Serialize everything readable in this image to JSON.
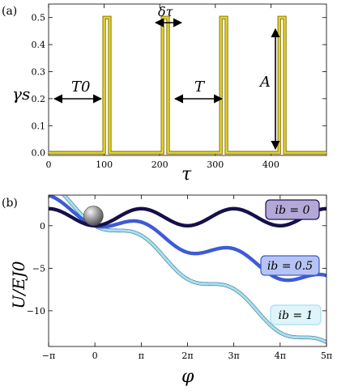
{
  "chart_data": [
    {
      "type": "line",
      "panel_label": "(a)",
      "xlabel": "τ",
      "ylabel": "γs",
      "xlim": [
        0,
        500
      ],
      "ylim": [
        -0.01,
        0.55
      ],
      "x_ticks": [
        0,
        100,
        200,
        300,
        400
      ],
      "x_tick_labels": [
        "0",
        "100",
        "200",
        "300",
        "400"
      ],
      "y_ticks": [
        0.0,
        0.1,
        0.2,
        0.3,
        0.4,
        0.5
      ],
      "y_tick_labels": [
        "0.0",
        "0.1",
        "0.2",
        "0.3",
        "0.4",
        "0.5"
      ],
      "grid": false,
      "pulse_start_times": [
        100,
        200,
        300,
        400
      ],
      "pulse_width": 10,
      "pulse_offset_step": 5,
      "pulse_height": 0.5,
      "baseline": 0.0,
      "line_color": "#e8d52a",
      "annotations": {
        "T0": "T0",
        "T": "T",
        "dtau": "δτ",
        "A": "A"
      }
    },
    {
      "type": "line",
      "panel_label": "(b)",
      "xlabel": "φ",
      "ylabel": "U/EJ0",
      "xlim": [
        -3.1416,
        15.708
      ],
      "ylim": [
        -14.2,
        3.6
      ],
      "x_ticks": [
        -3.1416,
        0,
        3.1416,
        6.2832,
        9.4248,
        12.5664,
        15.708
      ],
      "x_tick_labels": [
        "−π",
        "0",
        "π",
        "2π",
        "3π",
        "4π",
        "5π"
      ],
      "y_ticks": [
        0,
        -5,
        -10
      ],
      "y_tick_labels": [
        "0",
        "−5",
        "−10"
      ],
      "grid": false,
      "ball_position": {
        "x": -0.1,
        "y": 0.6
      },
      "series": [
        {
          "label": "ib = 0",
          "ib": 0,
          "color": "#15104a"
        },
        {
          "label": "ib = 0.5",
          "ib": 0.5,
          "color": "#3d5bd6"
        },
        {
          "label": "ib = 1",
          "ib": 1,
          "color": "#a9dff0"
        }
      ]
    }
  ]
}
